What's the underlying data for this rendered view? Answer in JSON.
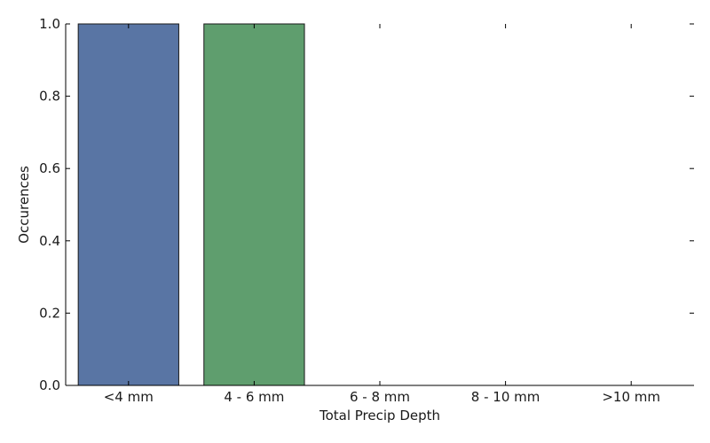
{
  "chart_data": {
    "type": "bar",
    "title": "",
    "xlabel": "Total Precip Depth",
    "ylabel": "Occurences",
    "categories": [
      "<4 mm",
      "4 - 6 mm",
      "6 - 8 mm",
      "8 - 10 mm",
      ">10 mm"
    ],
    "values": [
      1.0,
      1.0,
      0.0,
      0.0,
      0.0
    ],
    "colors": [
      "#5975a4",
      "#5f9e6e",
      "#b55d60",
      "#857aab",
      "#8d7866"
    ],
    "ylim": [
      0,
      1.0
    ],
    "yticks": [
      "0.0",
      "0.2",
      "0.4",
      "0.6",
      "0.8",
      "1.0"
    ],
    "grid": false,
    "spines": [
      "left",
      "bottom"
    ]
  }
}
